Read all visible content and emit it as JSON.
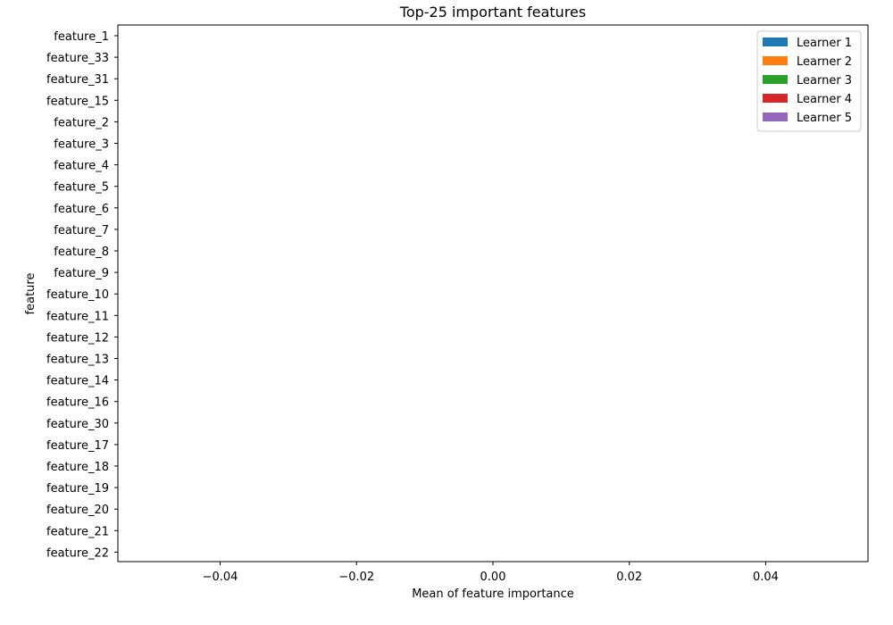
{
  "chart_data": {
    "type": "bar",
    "orientation": "horizontal",
    "title": "Top-25 important features",
    "xlabel": "Mean of feature importance",
    "ylabel": "feature",
    "xlim": [
      -0.055,
      0.055
    ],
    "xticks": [
      -0.04,
      -0.02,
      0.0,
      0.02,
      0.04
    ],
    "xtick_labels": [
      "−0.04",
      "−0.02",
      "0.00",
      "0.02",
      "0.04"
    ],
    "categories": [
      "feature_1",
      "feature_33",
      "feature_31",
      "feature_15",
      "feature_2",
      "feature_3",
      "feature_4",
      "feature_5",
      "feature_6",
      "feature_7",
      "feature_8",
      "feature_9",
      "feature_10",
      "feature_11",
      "feature_12",
      "feature_13",
      "feature_14",
      "feature_16",
      "feature_30",
      "feature_17",
      "feature_18",
      "feature_19",
      "feature_20",
      "feature_21",
      "feature_22"
    ],
    "series": [
      {
        "name": "Learner 1",
        "color": "#1f77b4",
        "values": [
          0,
          0,
          0,
          0,
          0,
          0,
          0,
          0,
          0,
          0,
          0,
          0,
          0,
          0,
          0,
          0,
          0,
          0,
          0,
          0,
          0,
          0,
          0,
          0,
          0
        ]
      },
      {
        "name": "Learner 2",
        "color": "#ff7f0e",
        "values": [
          0,
          0,
          0,
          0,
          0,
          0,
          0,
          0,
          0,
          0,
          0,
          0,
          0,
          0,
          0,
          0,
          0,
          0,
          0,
          0,
          0,
          0,
          0,
          0,
          0
        ]
      },
      {
        "name": "Learner 3",
        "color": "#2ca02c",
        "values": [
          0,
          0,
          0,
          0,
          0,
          0,
          0,
          0,
          0,
          0,
          0,
          0,
          0,
          0,
          0,
          0,
          0,
          0,
          0,
          0,
          0,
          0,
          0,
          0,
          0
        ]
      },
      {
        "name": "Learner 4",
        "color": "#d62728",
        "values": [
          0,
          0,
          0,
          0,
          0,
          0,
          0,
          0,
          0,
          0,
          0,
          0,
          0,
          0,
          0,
          0,
          0,
          0,
          0,
          0,
          0,
          0,
          0,
          0,
          0
        ]
      },
      {
        "name": "Learner 5",
        "color": "#9467bd",
        "values": [
          0,
          0,
          0,
          0,
          0,
          0,
          0,
          0,
          0,
          0,
          0,
          0,
          0,
          0,
          0,
          0,
          0,
          0,
          0,
          0,
          0,
          0,
          0,
          0,
          0
        ]
      }
    ],
    "stacked": true,
    "grid": false,
    "legend_position": "top-right"
  }
}
